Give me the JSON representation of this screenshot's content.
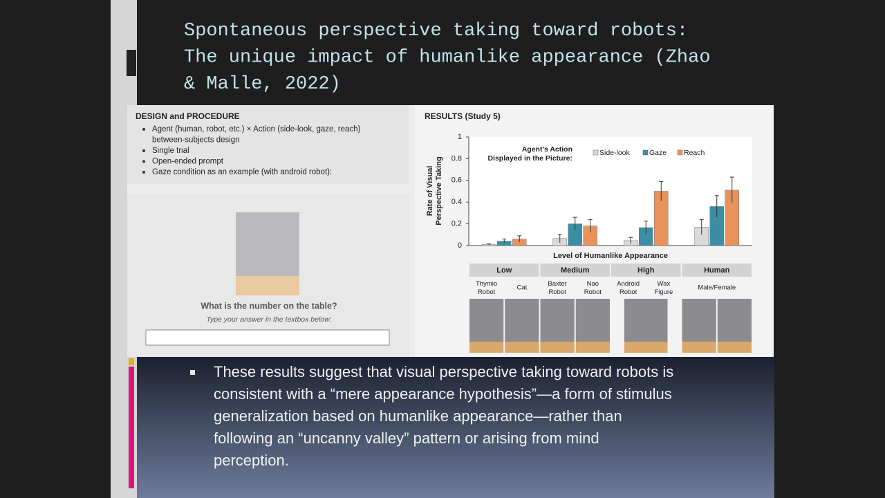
{
  "slide": {
    "title_lines": [
      "Spontaneous perspective taking toward robots:",
      "The unique impact of humanlike appearance  (Zhao",
      "& Malle, 2022)"
    ],
    "bullet_lines": [
      "These results suggest that visual perspective taking toward robots is",
      "consistent with a “mere appearance hypothesis”—a form of stimulus",
      "generalization based on humanlike appearance—rather than",
      "following an “uncanny valley” pattern or arising from mind",
      "perception."
    ]
  },
  "design": {
    "heading": "DESIGN and PROCEDURE",
    "bullets": [
      [
        "Agent (human, robot, etc.) × Action (side-look, gaze, reach)",
        "between-subjects design"
      ],
      [
        "Single trial"
      ],
      [
        "Open-ended prompt"
      ],
      [
        "Gaze condition as an example (with android robot):"
      ]
    ]
  },
  "stimulus": {
    "question": "What is the number on the table?",
    "instruction": "Type your answer in the textbox below:"
  },
  "results_heading": "RESULTS (Study 5)",
  "chart_data": {
    "type": "bar",
    "ylabel_lines": [
      "Rate of Visual",
      "Perspective Taking"
    ],
    "xlabel": "Level of Humanlike Appearance",
    "legend_title_lines": [
      "Agent's Action",
      "Displayed in the Picture:"
    ],
    "categories": [
      "Low",
      "Medium",
      "High",
      "Human"
    ],
    "sublabels": [
      [
        "Thymio Robot",
        "Cat"
      ],
      [
        "Baxter Robot",
        "Nao Robot"
      ],
      [
        "Android Robot",
        "Wax Figure"
      ],
      [
        "Male/Female"
      ]
    ],
    "series": [
      {
        "name": "Side-look",
        "color": "#d9d9d9",
        "values": [
          0.01,
          0.065,
          0.045,
          0.17
        ],
        "errors": [
          0.005,
          0.04,
          0.03,
          0.07
        ]
      },
      {
        "name": "Gaze",
        "color": "#3b8ea3",
        "values": [
          0.04,
          0.2,
          0.165,
          0.36
        ],
        "errors": [
          0.02,
          0.06,
          0.06,
          0.1
        ]
      },
      {
        "name": "Reach",
        "color": "#e8935c",
        "values": [
          0.06,
          0.18,
          0.5,
          0.51
        ],
        "errors": [
          0.03,
          0.06,
          0.09,
          0.12
        ]
      }
    ],
    "ylim": [
      0,
      1
    ],
    "yticks": [
      0,
      0.2,
      0.4,
      0.6,
      0.8,
      1
    ]
  }
}
